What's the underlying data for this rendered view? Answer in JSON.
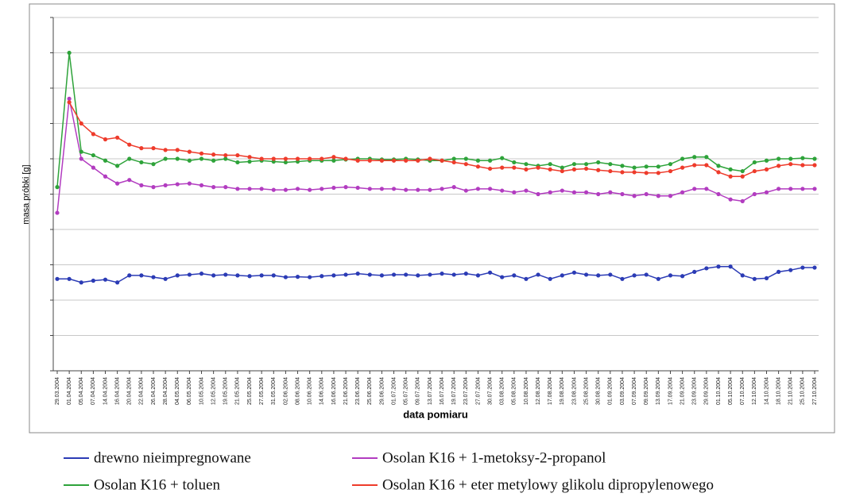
{
  "chart_data": {
    "type": "line",
    "y_label": "masa próbki [g]",
    "x_label": "data pomiaru",
    "categories": [
      "29.03.2004",
      "01.04.2004",
      "05.04.2004",
      "07.04.2004",
      "14.04.2004",
      "16.04.2004",
      "20.04.2004",
      "22.04.2004",
      "26.04.2004",
      "28.04.2004",
      "04.05.2004",
      "06.05.2004",
      "10.05.2004",
      "12.05.2004",
      "19.05.2004",
      "21.05.2004",
      "25.05.2004",
      "27.05.2004",
      "31.05.2004",
      "02.06.2004",
      "08.06.2004",
      "10.06.2004",
      "14.06.2004",
      "16.06.2004",
      "21.06.2004",
      "23.06.2004",
      "25.06.2004",
      "29.06.2004",
      "01.07.2004",
      "05.07.2004",
      "09.07.2004",
      "13.07.2004",
      "16.07.2004",
      "19.07.2004",
      "23.07.2004",
      "27.07.2004",
      "30.07.2004",
      "03.08.2004",
      "05.08.2004",
      "10.08.2004",
      "12.08.2004",
      "17.08.2004",
      "19.08.2004",
      "23.08.2004",
      "25.08.2004",
      "30.08.2004",
      "01.09.2004",
      "03.09.2004",
      "07.09.2004",
      "09.09.2004",
      "13.09.2004",
      "17.09.2004",
      "21.09.2004",
      "23.09.2004",
      "29.09.2004",
      "01.10.2004",
      "05.10.2004",
      "07.10.2004",
      "12.10.2004",
      "14.10.2004",
      "18.10.2004",
      "21.10.2004",
      "25.10.2004",
      "27.10.2004"
    ],
    "series": [
      {
        "name": "drewno nieimpregnowane",
        "color": "#2b3bb5",
        "values": [
          2.6,
          2.6,
          2.5,
          2.55,
          2.58,
          2.5,
          2.7,
          2.7,
          2.65,
          2.6,
          2.7,
          2.72,
          2.75,
          2.7,
          2.72,
          2.7,
          2.68,
          2.7,
          2.7,
          2.65,
          2.66,
          2.65,
          2.68,
          2.7,
          2.72,
          2.75,
          2.72,
          2.7,
          2.72,
          2.72,
          2.7,
          2.72,
          2.75,
          2.72,
          2.75,
          2.7,
          2.78,
          2.65,
          2.7,
          2.6,
          2.72,
          2.6,
          2.7,
          2.78,
          2.72,
          2.7,
          2.72,
          2.6,
          2.7,
          2.72,
          2.6,
          2.7,
          2.68,
          2.8,
          2.9,
          2.95,
          2.95,
          2.7,
          2.6,
          2.62,
          2.8,
          2.85,
          2.92,
          2.92
        ]
      },
      {
        "name": "Osolan K16 + 1-metoksy-2-propanol",
        "color": "#b23cc0",
        "values": [
          4.47,
          7.7,
          6.0,
          5.75,
          5.5,
          5.3,
          5.4,
          5.25,
          5.2,
          5.25,
          5.28,
          5.3,
          5.25,
          5.2,
          5.2,
          5.15,
          5.15,
          5.15,
          5.12,
          5.12,
          5.15,
          5.12,
          5.15,
          5.18,
          5.2,
          5.18,
          5.15,
          5.15,
          5.15,
          5.12,
          5.12,
          5.12,
          5.15,
          5.2,
          5.1,
          5.15,
          5.15,
          5.1,
          5.05,
          5.1,
          5.0,
          5.05,
          5.1,
          5.05,
          5.05,
          5.0,
          5.05,
          5.0,
          4.95,
          5.0,
          4.95,
          4.95,
          5.05,
          5.15,
          5.15,
          5.0,
          4.85,
          4.8,
          5.0,
          5.05,
          5.15,
          5.15,
          5.15,
          5.15
        ]
      },
      {
        "name": "Osolan K16 + toluen",
        "color": "#2ea33a",
        "values": [
          5.2,
          9.0,
          6.2,
          6.1,
          5.95,
          5.8,
          6.0,
          5.9,
          5.85,
          6.0,
          6.0,
          5.95,
          6.0,
          5.95,
          6.0,
          5.9,
          5.92,
          5.95,
          5.92,
          5.9,
          5.92,
          5.95,
          5.95,
          5.95,
          5.98,
          6.0,
          6.0,
          5.98,
          5.98,
          6.0,
          5.98,
          5.95,
          5.95,
          6.0,
          6.0,
          5.95,
          5.95,
          6.02,
          5.9,
          5.85,
          5.8,
          5.85,
          5.75,
          5.85,
          5.85,
          5.9,
          5.85,
          5.8,
          5.75,
          5.78,
          5.78,
          5.85,
          6.0,
          6.05,
          6.05,
          5.8,
          5.7,
          5.65,
          5.9,
          5.95,
          6.0,
          6.0,
          6.02,
          6.0
        ]
      },
      {
        "name": "Osolan K16 + eter metylowy glikolu dipropylenowego",
        "color": "#ee3b2b",
        "values": [
          null,
          7.6,
          7.0,
          6.7,
          6.55,
          6.6,
          6.4,
          6.3,
          6.3,
          6.25,
          6.25,
          6.2,
          6.15,
          6.12,
          6.1,
          6.1,
          6.05,
          6.0,
          6.0,
          6.0,
          6.0,
          6.0,
          6.0,
          6.05,
          6.0,
          5.95,
          5.95,
          5.95,
          5.95,
          5.95,
          5.95,
          6.0,
          5.95,
          5.9,
          5.85,
          5.78,
          5.72,
          5.75,
          5.75,
          5.7,
          5.75,
          5.7,
          5.65,
          5.7,
          5.72,
          5.68,
          5.65,
          5.62,
          5.62,
          5.6,
          5.6,
          5.65,
          5.75,
          5.82,
          5.82,
          5.62,
          5.5,
          5.5,
          5.65,
          5.7,
          5.8,
          5.85,
          5.82,
          5.82
        ]
      }
    ],
    "ylim": [
      0,
      10
    ],
    "yticks": [
      0,
      1,
      2,
      3,
      4,
      5,
      6,
      7,
      8,
      9,
      10
    ],
    "ytick_labels": false,
    "grid": true
  }
}
